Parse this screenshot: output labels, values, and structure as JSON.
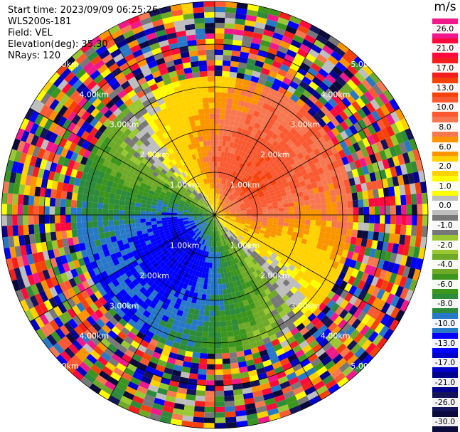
{
  "header": {
    "start_time_label": "Start time:",
    "start_time": "2023/09/09 06:25:26",
    "instrument": "WLS200s-181",
    "field_label": "Field:",
    "field": "VEL",
    "elevation_label": "Elevation(deg):",
    "elevation": "35.30",
    "nrays_label": "NRays:",
    "nrays": "120"
  },
  "colorbar": {
    "unit": "m/s",
    "labels": [
      "26.0",
      "21.0",
      "17.0",
      "13.0",
      "10.0",
      "8.0",
      "6.0",
      "2.0",
      "1.0",
      "0.0",
      "-1.0",
      "-2.0",
      "-4.0",
      "-6.0",
      "-8.0",
      "-10.0",
      "-13.0",
      "-17.0",
      "-21.0",
      "-26.0",
      "-30.0"
    ],
    "colors": [
      "#f0198c",
      "#ff0a3c",
      "#f51e1e",
      "#f5420a",
      "#fa5a32",
      "#f77850",
      "#fa9500",
      "#ffd200",
      "#ffff00",
      "#bebebe",
      "#787878",
      "#9ac832",
      "#6eaa28",
      "#3c961e",
      "#2d8c3c",
      "#2878c8",
      "#0000ff",
      "#0000c8",
      "#00008c",
      "#14145a",
      "#0a0a3c"
    ]
  },
  "range_rings": {
    "labels": [
      "1.00km",
      "2.00km",
      "3.00km",
      "4.00km",
      "5.00km"
    ]
  },
  "chart_data": {
    "type": "heatmap",
    "projection": "PPI (polar)",
    "field": "VEL",
    "unit": "m/s",
    "nrays": 120,
    "rings_km": [
      1,
      2,
      3,
      4,
      5
    ],
    "color_scale_ms": [
      26.0,
      21.0,
      17.0,
      13.0,
      10.0,
      8.0,
      6.0,
      2.0,
      1.0,
      0.0,
      -1.0,
      -2.0,
      -4.0,
      -6.0,
      -8.0,
      -10.0,
      -13.0,
      -17.0,
      -21.0,
      -26.0,
      -30.0
    ],
    "valid_data_extent_km": 3.2,
    "pattern": "positive (receding) velocities north/east up to ~13 m/s, negative (approaching) velocities south/west down to ~-10 m/s; noisy random values beyond ~3.2 km"
  }
}
